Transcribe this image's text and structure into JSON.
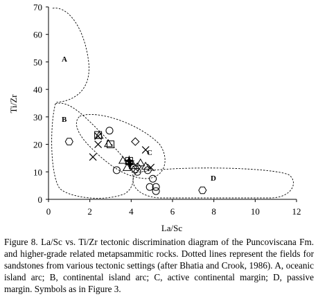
{
  "chart_data": {
    "type": "scatter",
    "x_label": "La/Sc",
    "y_label": "Ti/Zr",
    "xlim": [
      0,
      12
    ],
    "ylim": [
      0,
      70
    ],
    "xticks": [
      0,
      2,
      4,
      6,
      8,
      10,
      12
    ],
    "yticks": [
      0,
      10,
      20,
      30,
      40,
      50,
      60,
      70
    ],
    "grid": false,
    "annotations": [
      "A",
      "B",
      "C",
      "D"
    ],
    "series": [
      {
        "marker": "hexagon",
        "color": "#000000",
        "x": [
          1.0,
          7.45
        ],
        "values": [
          21,
          3.3
        ]
      },
      {
        "marker": "circle",
        "color": "#000000",
        "x": [
          2.95,
          3.3,
          4.3,
          4.8,
          4.9,
          5.05,
          5.2,
          5.2,
          4.2
        ],
        "values": [
          25,
          10.6,
          10,
          10.6,
          4.5,
          7.5,
          4.5,
          3,
          11
        ]
      },
      {
        "marker": "square",
        "color": "#000000",
        "x": [
          2.4,
          3.0,
          3.9
        ],
        "values": [
          23.4,
          20,
          14
        ]
      },
      {
        "marker": "triangle",
        "color": "#000000",
        "x": [
          2.45,
          2.9,
          3.6,
          3.8,
          4.45,
          4.7,
          4.1
        ],
        "values": [
          23,
          20,
          13.9,
          11.3,
          13,
          11.8,
          12
        ]
      },
      {
        "marker": "diamond",
        "color": "#000000",
        "x": [
          4.2,
          4.3
        ],
        "values": [
          21,
          11.8
        ]
      },
      {
        "marker": "cross",
        "color": "#000000",
        "x": [
          2.15,
          2.4,
          4.7,
          4.95,
          2.4
        ],
        "values": [
          15.4,
          20,
          18,
          11.6,
          23
        ]
      },
      {
        "marker": "star",
        "color": "#000000",
        "x": [
          3.9,
          3.95
        ],
        "values": [
          14,
          12.8
        ]
      }
    ]
  },
  "caption": "Figure 8. La/Sc vs. Ti/Zr tectonic discrimination diagram of the Puncoviscana Fm. and higher-grade related metapsammitic rocks. Dotted lines represent the fields for sandstones from various tectonic settings (after Bhatia and Crook, 1986). A, oceanic island arc; B, continental island arc; C, active continental margin; D, passive margin. Symbols as in Figure 3."
}
